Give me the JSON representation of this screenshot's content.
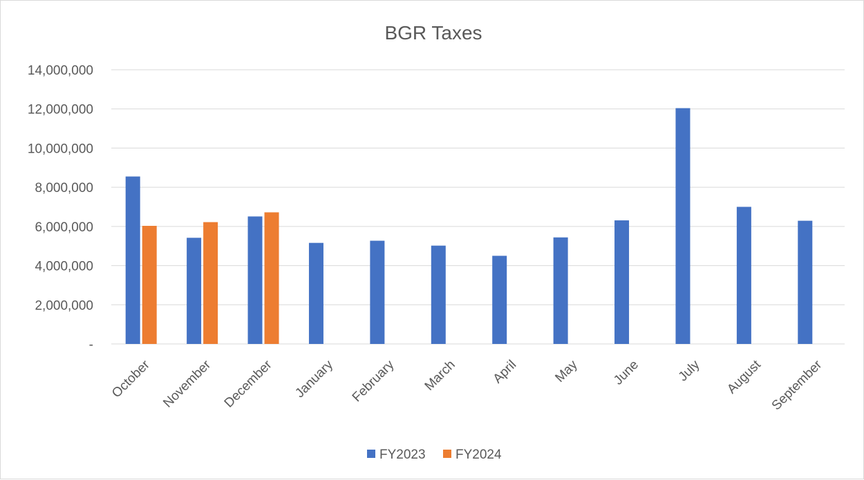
{
  "chart_data": {
    "type": "bar",
    "title": "BGR Taxes",
    "xlabel": "",
    "ylabel": "",
    "categories": [
      "October",
      "November",
      "December",
      "January",
      "February",
      "March",
      "April",
      "May",
      "June",
      "July",
      "August",
      "September"
    ],
    "series": [
      {
        "name": "FY2023",
        "color": "#4472C4",
        "values": [
          8550000,
          5420000,
          6510000,
          5160000,
          5270000,
          5020000,
          4500000,
          5440000,
          6310000,
          12040000,
          7000000,
          6290000
        ]
      },
      {
        "name": "FY2024",
        "color": "#ED7D31",
        "values": [
          6030000,
          6220000,
          6720000,
          null,
          null,
          null,
          null,
          null,
          null,
          null,
          null,
          null
        ]
      }
    ],
    "ylim": [
      0,
      14000000
    ],
    "y_ticks": [
      0,
      2000000,
      4000000,
      6000000,
      8000000,
      10000000,
      12000000,
      14000000
    ],
    "y_tick_labels": [
      "-",
      "2,000,000",
      "4,000,000",
      "6,000,000",
      "8,000,000",
      "10,000,000",
      "12,000,000",
      "14,000,000"
    ],
    "grid": true,
    "legend_position": "bottom"
  }
}
